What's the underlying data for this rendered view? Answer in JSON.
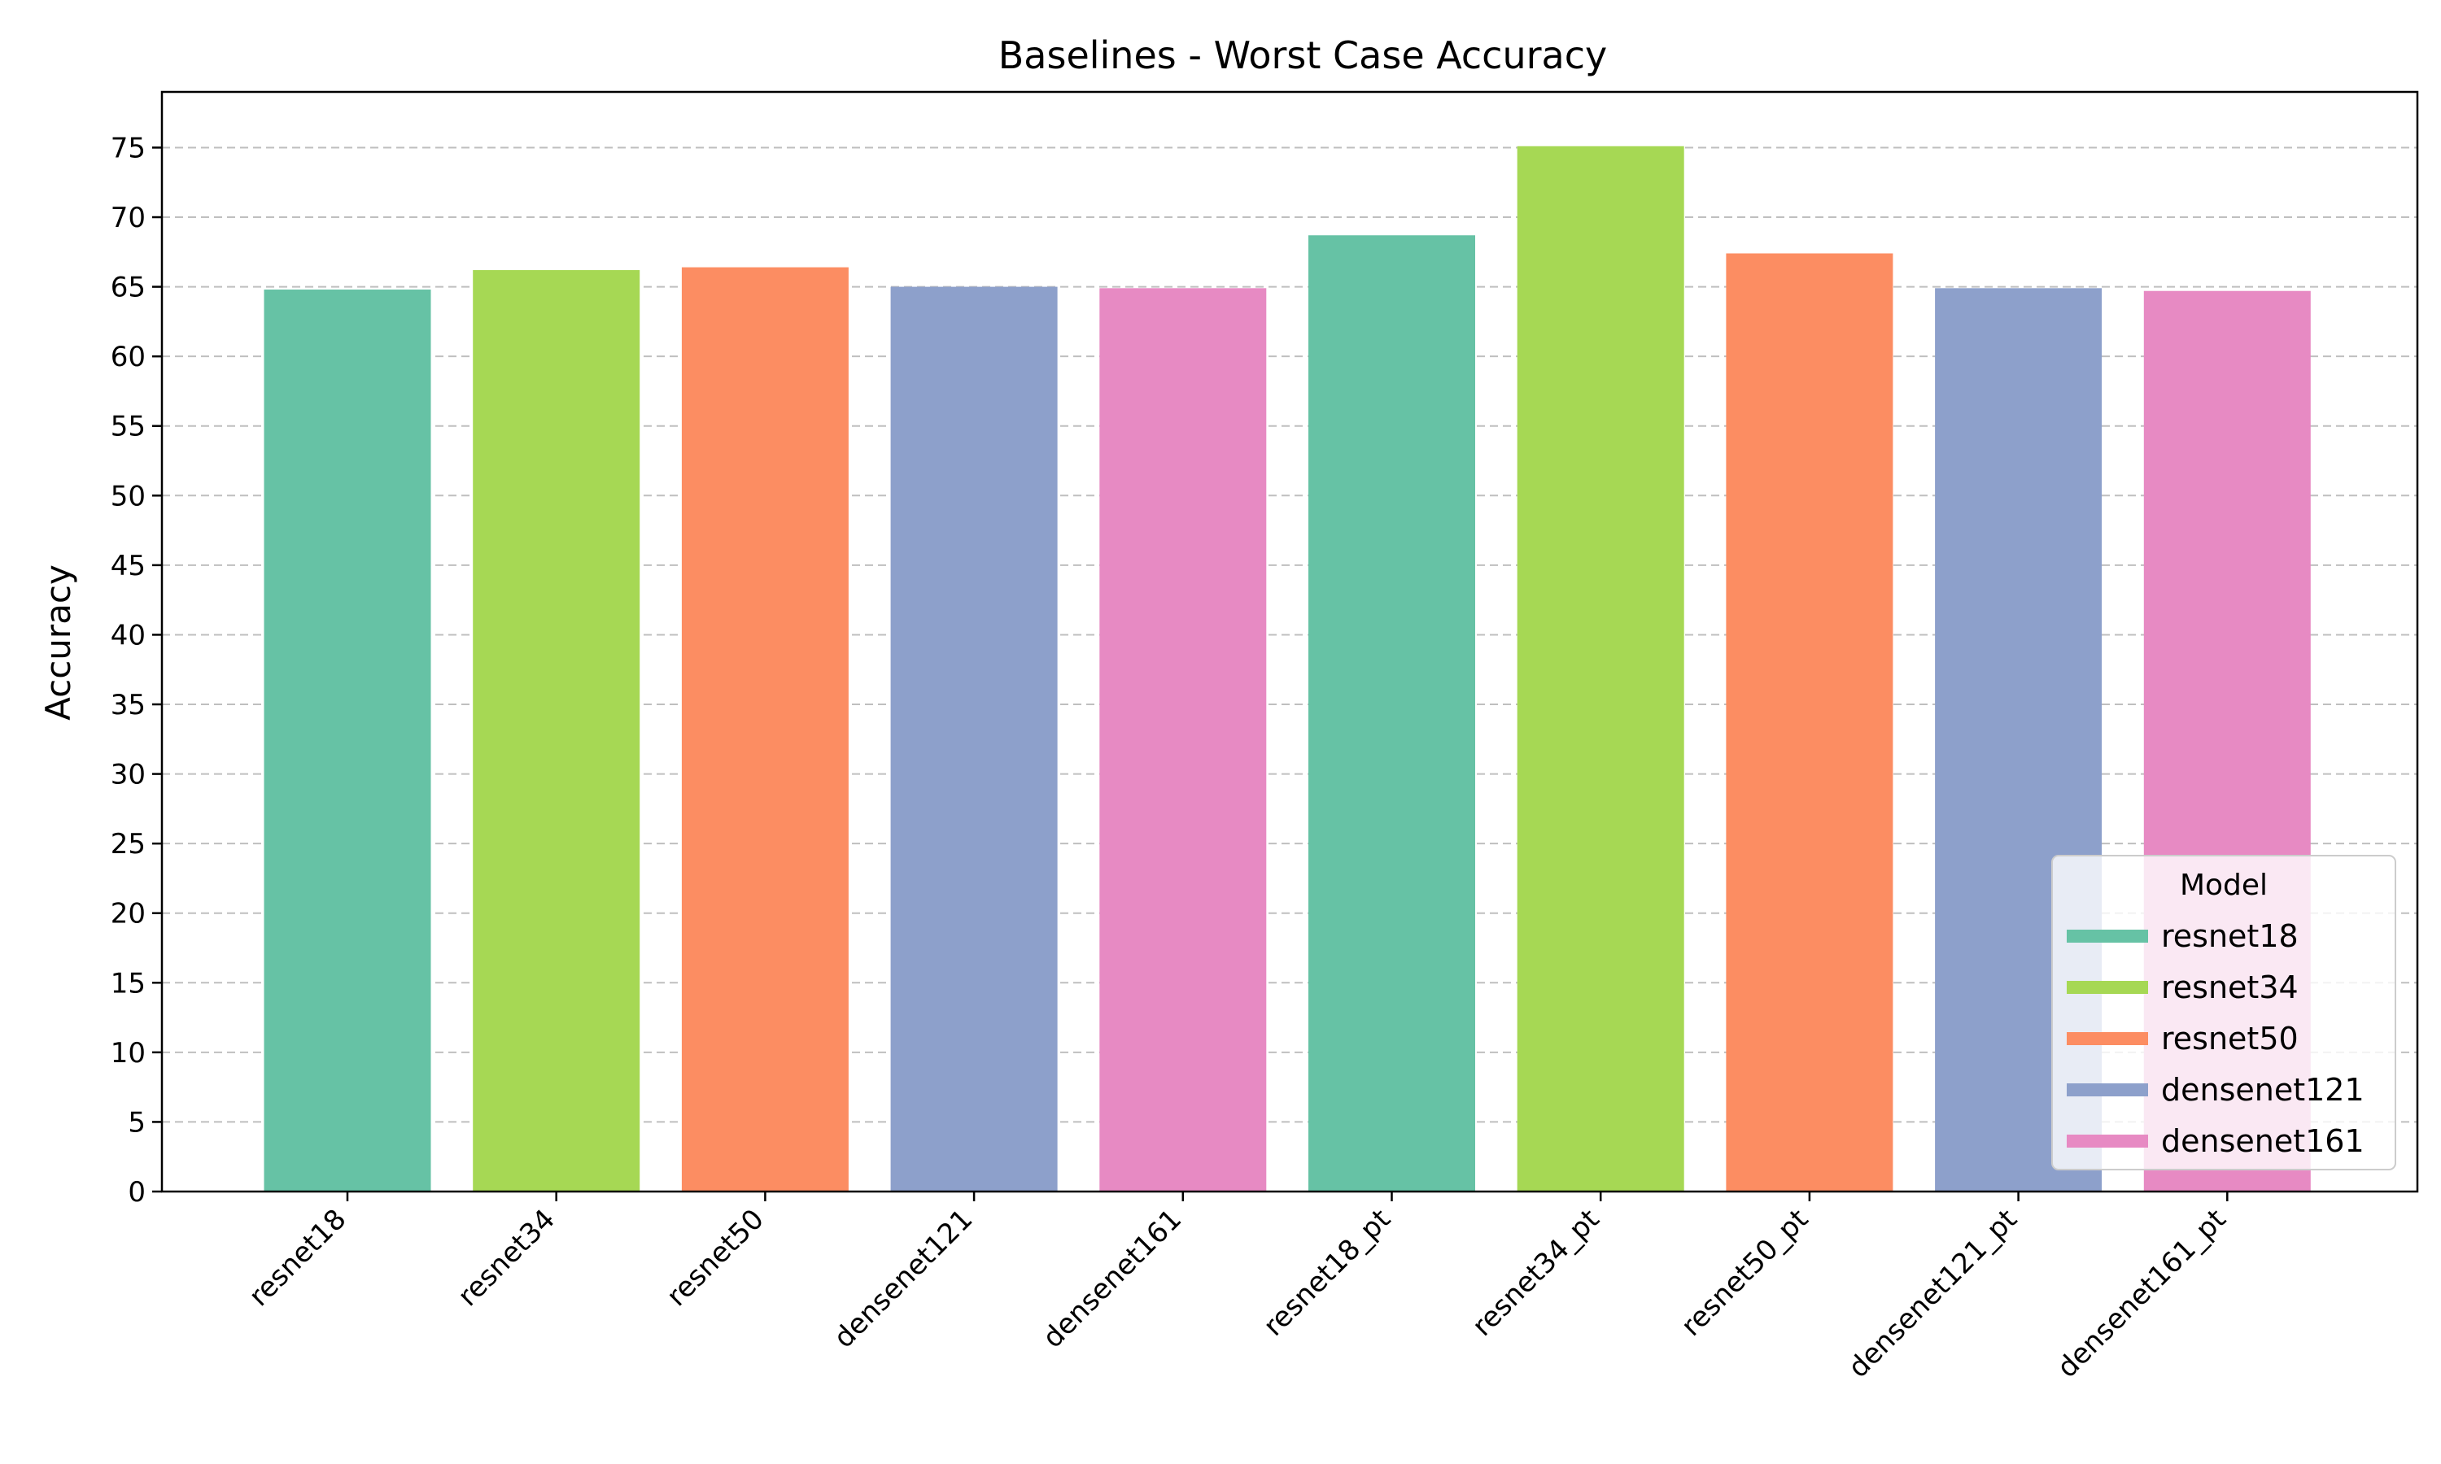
{
  "chart_data": {
    "type": "bar",
    "title": "Baselines - Worst Case Accuracy",
    "xlabel": "",
    "ylabel": "Accuracy",
    "categories": [
      "resnet18",
      "resnet34",
      "resnet50",
      "densenet121",
      "densenet161",
      "resnet18_pt",
      "resnet34_pt",
      "resnet50_pt",
      "densenet121_pt",
      "densenet161_pt"
    ],
    "values": [
      64.8,
      66.2,
      66.4,
      65.0,
      64.9,
      68.7,
      75.1,
      67.4,
      64.9,
      64.7
    ],
    "bar_models": [
      "resnet18",
      "resnet34",
      "resnet50",
      "densenet121",
      "densenet161",
      "resnet18",
      "resnet34",
      "resnet50",
      "densenet121",
      "densenet161"
    ],
    "ylim": [
      0,
      79
    ],
    "yticks": [
      0,
      5,
      10,
      15,
      20,
      25,
      30,
      35,
      40,
      45,
      50,
      55,
      60,
      65,
      70,
      75
    ],
    "grid": "y-dashed",
    "legend": {
      "title": "Model",
      "placement": "lower-right",
      "entries": [
        {
          "name": "resnet18",
          "color": "#66c2a5"
        },
        {
          "name": "resnet34",
          "color": "#a6d854"
        },
        {
          "name": "resnet50",
          "color": "#fc8d62"
        },
        {
          "name": "densenet121",
          "color": "#8da0cb"
        },
        {
          "name": "densenet161",
          "color": "#e78ac3"
        }
      ]
    }
  }
}
